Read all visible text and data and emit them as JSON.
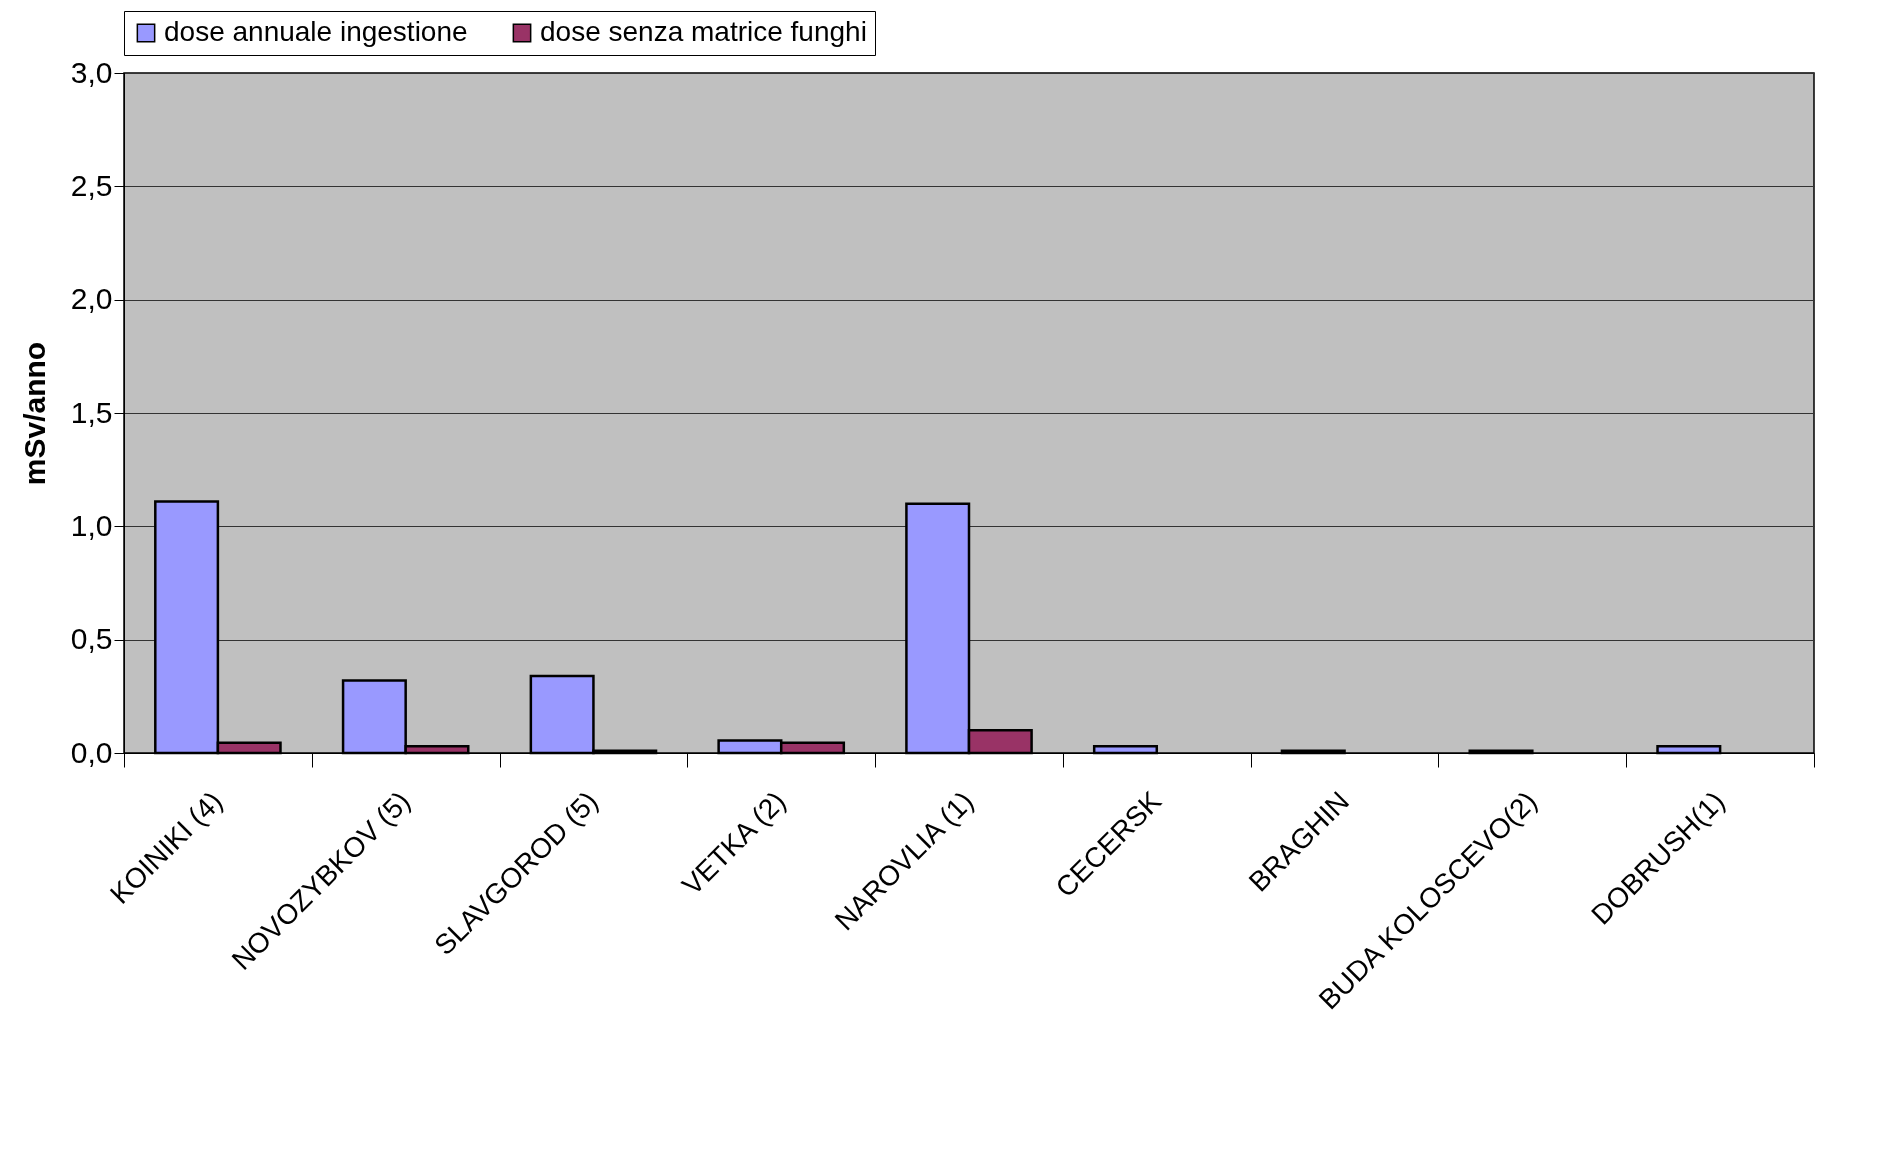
{
  "chart_data": {
    "type": "bar",
    "ylabel": "mSv/anno",
    "categories": [
      "KOINIKI (4)",
      "NOVOZYBKOV (5)",
      "SLAVGOROD (5)",
      "VETKA (2)",
      "NAROVLIA (1)",
      "CECERSK",
      "BRAGHIN",
      "BUDA KOLOSCEVO(2)",
      "DOBRUSH(1)"
    ],
    "series": [
      {
        "name": "dose annuale ingestione",
        "color": "#9999ff",
        "values": [
          1.11,
          0.32,
          0.34,
          0.055,
          1.1,
          0.03,
          0.01,
          0.01,
          0.03
        ]
      },
      {
        "name": "dose senza matrice funghi",
        "color": "#993366",
        "values": [
          0.045,
          0.03,
          0.01,
          0.045,
          0.1,
          null,
          null,
          null,
          null
        ]
      }
    ],
    "ylim": [
      0,
      3.0
    ],
    "yticks": [
      {
        "value": 0,
        "label": "0,0"
      },
      {
        "value": 0.5,
        "label": "0,5"
      },
      {
        "value": 1.0,
        "label": "1,0"
      },
      {
        "value": 1.5,
        "label": "1,5"
      },
      {
        "value": 2.0,
        "label": "2,0"
      },
      {
        "value": 2.5,
        "label": "2,5"
      },
      {
        "value": 3.0,
        "label": "3,0"
      }
    ],
    "grid": "y",
    "legend": "top"
  }
}
